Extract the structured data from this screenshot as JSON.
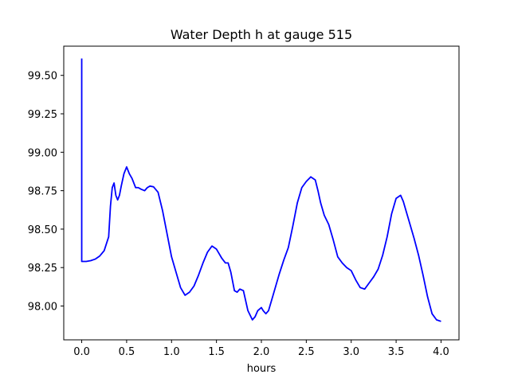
{
  "chart_data": {
    "type": "line",
    "title": "Water Depth h at gauge 515",
    "xlabel": "hours",
    "ylabel": "",
    "xlim": [
      -0.2,
      4.2
    ],
    "ylim": [
      97.78,
      99.69
    ],
    "xticks": [
      0.0,
      0.5,
      1.0,
      1.5,
      2.0,
      2.5,
      3.0,
      3.5,
      4.0
    ],
    "xtick_labels": [
      "0.0",
      "0.5",
      "1.0",
      "1.5",
      "2.0",
      "2.5",
      "3.0",
      "3.5",
      "4.0"
    ],
    "yticks": [
      98.0,
      98.25,
      98.5,
      98.75,
      99.0,
      99.25,
      99.5
    ],
    "ytick_labels": [
      "98.00",
      "98.25",
      "98.50",
      "98.75",
      "99.00",
      "99.25",
      "99.50"
    ],
    "grid": false,
    "legend": "none",
    "series": [
      {
        "color": "#0000ff",
        "x": [
          0.0,
          0.0,
          0.01,
          0.05,
          0.1,
          0.15,
          0.2,
          0.25,
          0.3,
          0.32,
          0.34,
          0.36,
          0.38,
          0.4,
          0.42,
          0.44,
          0.47,
          0.5,
          0.53,
          0.56,
          0.6,
          0.63,
          0.66,
          0.7,
          0.73,
          0.76,
          0.8,
          0.85,
          0.9,
          0.95,
          1.0,
          1.05,
          1.1,
          1.15,
          1.2,
          1.25,
          1.3,
          1.35,
          1.4,
          1.45,
          1.5,
          1.53,
          1.56,
          1.6,
          1.63,
          1.66,
          1.7,
          1.73,
          1.76,
          1.8,
          1.85,
          1.9,
          1.93,
          1.96,
          2.0,
          2.02,
          2.05,
          2.08,
          2.12,
          2.16,
          2.2,
          2.25,
          2.3,
          2.35,
          2.4,
          2.45,
          2.5,
          2.55,
          2.6,
          2.63,
          2.66,
          2.7,
          2.75,
          2.8,
          2.85,
          2.9,
          2.95,
          3.0,
          3.05,
          3.1,
          3.15,
          3.2,
          3.25,
          3.3,
          3.35,
          3.4,
          3.45,
          3.5,
          3.55,
          3.58,
          3.61,
          3.65,
          3.7,
          3.75,
          3.8,
          3.85,
          3.9,
          3.95,
          4.0
        ],
        "y": [
          99.61,
          98.29,
          98.29,
          98.29,
          98.295,
          98.305,
          98.325,
          98.36,
          98.45,
          98.65,
          98.77,
          98.8,
          98.72,
          98.69,
          98.72,
          98.78,
          98.86,
          98.905,
          98.86,
          98.83,
          98.77,
          98.77,
          98.76,
          98.75,
          98.77,
          98.78,
          98.775,
          98.74,
          98.62,
          98.47,
          98.32,
          98.22,
          98.12,
          98.07,
          98.09,
          98.13,
          98.2,
          98.28,
          98.35,
          98.39,
          98.37,
          98.34,
          98.31,
          98.28,
          98.28,
          98.22,
          98.1,
          98.09,
          98.11,
          98.1,
          97.97,
          97.91,
          97.93,
          97.97,
          97.99,
          97.97,
          97.95,
          97.97,
          98.05,
          98.13,
          98.21,
          98.3,
          98.38,
          98.52,
          98.67,
          98.77,
          98.81,
          98.84,
          98.82,
          98.75,
          98.67,
          98.59,
          98.53,
          98.43,
          98.32,
          98.28,
          98.25,
          98.23,
          98.17,
          98.12,
          98.11,
          98.15,
          98.19,
          98.24,
          98.33,
          98.45,
          98.6,
          98.7,
          98.72,
          98.68,
          98.62,
          98.54,
          98.44,
          98.33,
          98.2,
          98.06,
          97.95,
          97.91,
          97.9
        ]
      }
    ]
  }
}
